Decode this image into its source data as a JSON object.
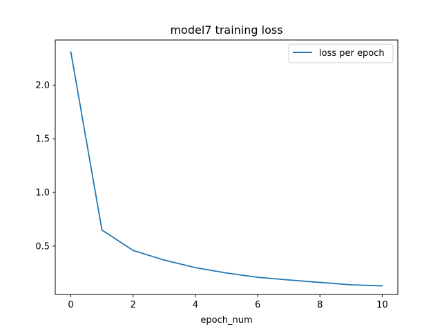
{
  "chart_data": {
    "type": "line",
    "title": "model7 training loss",
    "xlabel": "epoch_num",
    "ylabel": "",
    "xlim": [
      -0.5,
      10.5
    ],
    "ylim": [
      0.05,
      2.42
    ],
    "x_ticks": [
      0,
      2,
      4,
      6,
      8,
      10
    ],
    "x_tick_labels": [
      "0",
      "2",
      "4",
      "6",
      "8",
      "10"
    ],
    "y_ticks": [
      0.5,
      1.0,
      1.5,
      2.0
    ],
    "y_tick_labels": [
      "0.5",
      "1.0",
      "1.5",
      "2.0"
    ],
    "grid": false,
    "legend_position": "top-right",
    "series": [
      {
        "name": "loss per epoch",
        "color": "#1f77b4",
        "x": [
          0,
          1,
          2,
          3,
          4,
          5,
          6,
          7,
          8,
          9,
          10
        ],
        "values": [
          2.31,
          0.65,
          0.46,
          0.37,
          0.3,
          0.25,
          0.21,
          0.185,
          0.162,
          0.14,
          0.13
        ]
      }
    ]
  }
}
